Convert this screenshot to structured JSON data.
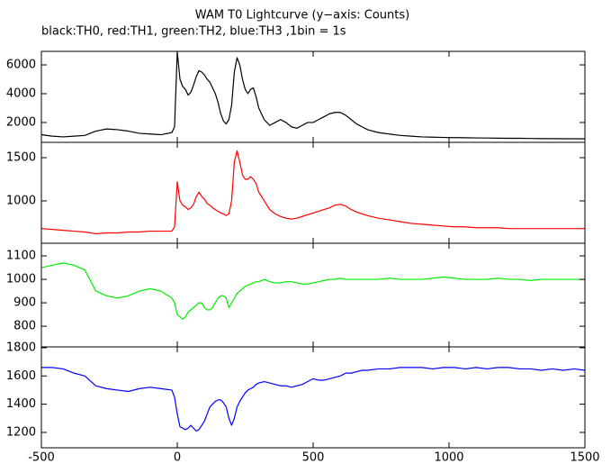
{
  "chart_data": [
    {
      "type": "line",
      "title": "WAM T0 Lightcurve (y−axis: Counts)",
      "subtitle": "black:TH0, red:TH1, green:TH2, blue:TH3 ,1bin = 1s",
      "x": [
        -500,
        -460,
        -420,
        -380,
        -340,
        -300,
        -260,
        -220,
        -180,
        -140,
        -100,
        -60,
        -20,
        -10,
        0,
        10,
        20,
        30,
        40,
        50,
        60,
        70,
        80,
        90,
        100,
        110,
        120,
        130,
        140,
        150,
        160,
        170,
        180,
        190,
        200,
        210,
        220,
        230,
        240,
        250,
        260,
        270,
        280,
        290,
        300,
        320,
        340,
        360,
        380,
        400,
        420,
        440,
        460,
        480,
        500,
        520,
        540,
        560,
        580,
        600,
        620,
        640,
        660,
        680,
        700,
        740,
        780,
        820,
        860,
        900,
        940,
        980,
        1020,
        1060,
        1100,
        1140,
        1180,
        1220,
        1260,
        1300,
        1340,
        1380,
        1420,
        1460,
        1500
      ],
      "color": "#000000",
      "values": [
        1150,
        1050,
        1000,
        1050,
        1100,
        1400,
        1550,
        1500,
        1400,
        1250,
        1200,
        1150,
        1300,
        1700,
        6900,
        5000,
        4500,
        4300,
        3900,
        4100,
        4600,
        5200,
        5600,
        5500,
        5300,
        5000,
        4800,
        4400,
        4000,
        3400,
        2600,
        2100,
        1900,
        2200,
        3200,
        5500,
        6500,
        6000,
        5000,
        4300,
        4000,
        4300,
        4400,
        3800,
        3000,
        2200,
        1800,
        2000,
        2200,
        2000,
        1700,
        1600,
        1800,
        2000,
        2000,
        2200,
        2400,
        2600,
        2700,
        2700,
        2500,
        2200,
        1900,
        1700,
        1500,
        1300,
        1200,
        1100,
        1050,
        1000,
        980,
        960,
        950,
        940,
        930,
        920,
        910,
        900,
        900,
        890,
        880,
        880,
        870,
        870,
        860
      ],
      "xlim": [
        -500,
        1500
      ],
      "ylim": [
        620,
        6940
      ],
      "yticks": [
        2000,
        4000,
        6000
      ]
    },
    {
      "type": "line",
      "x": [
        -500,
        -460,
        -420,
        -380,
        -340,
        -300,
        -260,
        -220,
        -180,
        -140,
        -100,
        -60,
        -20,
        -10,
        0,
        10,
        20,
        30,
        40,
        50,
        60,
        70,
        80,
        90,
        100,
        110,
        120,
        130,
        140,
        150,
        160,
        170,
        180,
        190,
        200,
        210,
        220,
        230,
        240,
        250,
        260,
        270,
        280,
        290,
        300,
        320,
        340,
        360,
        380,
        400,
        420,
        440,
        460,
        480,
        500,
        520,
        540,
        560,
        580,
        600,
        620,
        640,
        660,
        680,
        700,
        740,
        780,
        820,
        860,
        900,
        940,
        980,
        1020,
        1060,
        1100,
        1140,
        1180,
        1220,
        1260,
        1300,
        1340,
        1380,
        1420,
        1460,
        1500
      ],
      "color": "#ff0000",
      "values": [
        680,
        670,
        660,
        650,
        640,
        620,
        630,
        630,
        640,
        640,
        650,
        650,
        650,
        700,
        1220,
        1000,
        950,
        930,
        900,
        920,
        960,
        1050,
        1100,
        1050,
        1020,
        970,
        950,
        920,
        900,
        880,
        860,
        850,
        830,
        850,
        1000,
        1450,
        1580,
        1450,
        1300,
        1250,
        1250,
        1280,
        1250,
        1200,
        1100,
        1000,
        900,
        850,
        820,
        800,
        790,
        800,
        820,
        840,
        860,
        880,
        900,
        920,
        950,
        960,
        940,
        900,
        870,
        850,
        830,
        800,
        780,
        760,
        740,
        730,
        720,
        710,
        700,
        700,
        690,
        690,
        690,
        680,
        680,
        680,
        680,
        680,
        680,
        680,
        680
      ],
      "xlim": [
        -500,
        1500
      ],
      "ylim": [
        510,
        1677
      ],
      "yticks": [
        1000,
        1500
      ]
    },
    {
      "type": "line",
      "x": [
        -500,
        -460,
        -420,
        -380,
        -340,
        -300,
        -260,
        -220,
        -180,
        -140,
        -100,
        -60,
        -20,
        -10,
        0,
        10,
        20,
        30,
        40,
        50,
        60,
        70,
        80,
        90,
        100,
        110,
        120,
        130,
        140,
        150,
        160,
        170,
        180,
        190,
        200,
        210,
        220,
        230,
        240,
        250,
        260,
        270,
        280,
        290,
        300,
        320,
        340,
        360,
        380,
        400,
        420,
        440,
        460,
        480,
        500,
        520,
        540,
        560,
        580,
        600,
        620,
        640,
        660,
        680,
        700,
        740,
        780,
        820,
        860,
        900,
        940,
        980,
        1020,
        1060,
        1100,
        1140,
        1180,
        1220,
        1260,
        1300,
        1340,
        1380,
        1420,
        1460,
        1500
      ],
      "color": "#00ee00",
      "values": [
        1050,
        1060,
        1070,
        1060,
        1040,
        950,
        930,
        920,
        930,
        950,
        960,
        950,
        920,
        900,
        850,
        840,
        830,
        840,
        860,
        870,
        880,
        890,
        900,
        900,
        880,
        870,
        870,
        880,
        900,
        920,
        930,
        930,
        920,
        880,
        900,
        920,
        940,
        950,
        960,
        970,
        975,
        980,
        985,
        990,
        990,
        1000,
        990,
        985,
        985,
        990,
        990,
        985,
        980,
        980,
        985,
        990,
        995,
        1000,
        1000,
        1005,
        1000,
        1000,
        1000,
        1000,
        1000,
        1000,
        1005,
        1000,
        1000,
        1000,
        1005,
        1010,
        1005,
        1000,
        1000,
        1000,
        1005,
        1000,
        1000,
        995,
        1000,
        1000,
        1000,
        1000,
        1000
      ],
      "xlim": [
        -500,
        1500
      ],
      "ylim": [
        712,
        1154
      ],
      "yticks": [
        800,
        900,
        1000,
        1100
      ]
    },
    {
      "type": "line",
      "x": [
        -500,
        -460,
        -420,
        -380,
        -340,
        -300,
        -260,
        -220,
        -180,
        -140,
        -100,
        -60,
        -20,
        -10,
        0,
        10,
        20,
        30,
        40,
        50,
        60,
        70,
        80,
        90,
        100,
        110,
        120,
        130,
        140,
        150,
        160,
        170,
        180,
        190,
        200,
        210,
        220,
        230,
        240,
        250,
        260,
        270,
        280,
        290,
        300,
        320,
        340,
        360,
        380,
        400,
        420,
        440,
        460,
        480,
        500,
        520,
        540,
        560,
        580,
        600,
        620,
        640,
        660,
        680,
        700,
        740,
        780,
        820,
        860,
        900,
        940,
        980,
        1020,
        1060,
        1100,
        1140,
        1180,
        1220,
        1260,
        1300,
        1340,
        1380,
        1420,
        1460,
        1500
      ],
      "color": "#0000ff",
      "values": [
        1660,
        1660,
        1650,
        1620,
        1600,
        1530,
        1510,
        1500,
        1490,
        1510,
        1520,
        1510,
        1500,
        1450,
        1330,
        1240,
        1230,
        1220,
        1230,
        1250,
        1230,
        1210,
        1220,
        1250,
        1280,
        1330,
        1380,
        1400,
        1420,
        1430,
        1430,
        1410,
        1380,
        1300,
        1250,
        1300,
        1380,
        1420,
        1450,
        1480,
        1500,
        1510,
        1520,
        1540,
        1550,
        1560,
        1550,
        1540,
        1530,
        1530,
        1520,
        1530,
        1540,
        1560,
        1580,
        1570,
        1570,
        1580,
        1590,
        1600,
        1620,
        1620,
        1630,
        1640,
        1640,
        1650,
        1650,
        1660,
        1660,
        1660,
        1650,
        1660,
        1660,
        1650,
        1660,
        1650,
        1660,
        1660,
        1650,
        1650,
        1640,
        1650,
        1640,
        1650,
        1640
      ],
      "xlim": [
        -500,
        1500
      ],
      "ylim": [
        1091,
        1806
      ],
      "yticks": [
        1200,
        1400,
        1600,
        1800
      ],
      "xticks": [
        -500,
        0,
        500,
        1000,
        1500
      ]
    }
  ]
}
